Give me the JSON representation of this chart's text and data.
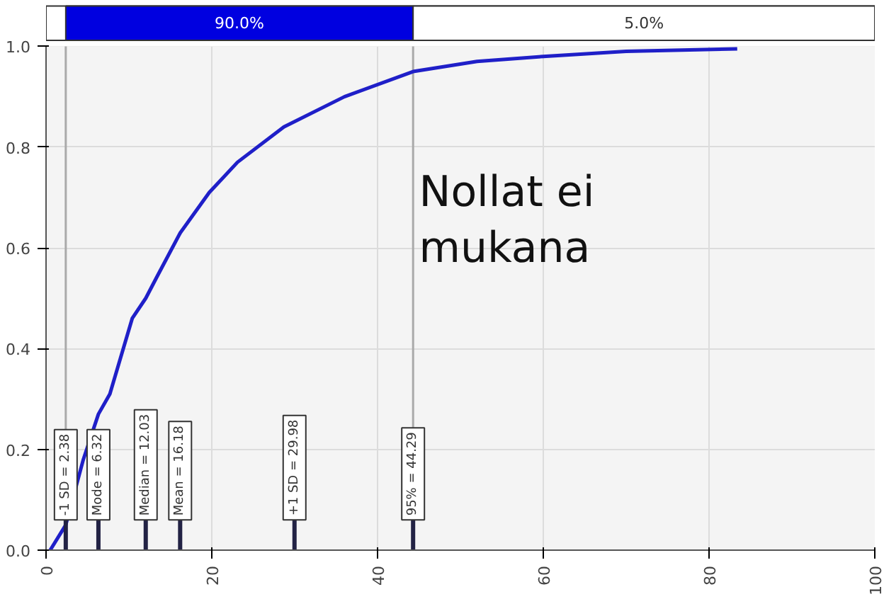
{
  "chart_data": {
    "type": "line",
    "x": [
      0.5,
      2.38,
      4.5,
      6.32,
      7.7,
      10.4,
      12.03,
      13.3,
      16.2,
      19.7,
      23.1,
      28.7,
      36,
      44.29,
      52,
      60,
      70,
      83.4
    ],
    "series": [
      {
        "color": "#1f1fc8",
        "values": [
          0,
          0.05,
          0.18,
          0.27,
          0.31,
          0.46,
          0.5,
          0.54,
          0.63,
          0.71,
          0.77,
          0.84,
          0.9,
          0.95,
          0.97,
          0.98,
          0.99,
          0.995
        ]
      }
    ],
    "xlim": [
      0,
      100
    ],
    "ylim": [
      0,
      1
    ],
    "xticks": [
      0,
      20,
      40,
      60,
      80,
      100
    ],
    "yticks": [
      {
        "value": 0,
        "label": "0.0"
      },
      0.2,
      0.4,
      0.6,
      0.8,
      {
        "value": 1,
        "label": "1.0"
      }
    ],
    "grid": true,
    "marker": "none",
    "line_style": "solid",
    "ref_lines": [
      {
        "axis": "x",
        "value": 2.38,
        "label": "-1 SD = 2.38",
        "color": "#aaaaaa"
      },
      {
        "axis": "x",
        "value": 6.32,
        "label": "Mode = 6.32"
      },
      {
        "axis": "x",
        "value": 12.03,
        "label": "Median = 12.03"
      },
      {
        "axis": "x",
        "value": 16.18,
        "label": "Mean = 16.18"
      },
      {
        "axis": "x",
        "value": 29.98,
        "label": "+1 SD = 29.98"
      },
      {
        "axis": "x",
        "value": 44.29,
        "label": "95% = 44.29",
        "color": "#aaaaaa"
      }
    ],
    "annotations": [
      "90.0%",
      "5.0%",
      "Nollat ei mukana"
    ]
  }
}
